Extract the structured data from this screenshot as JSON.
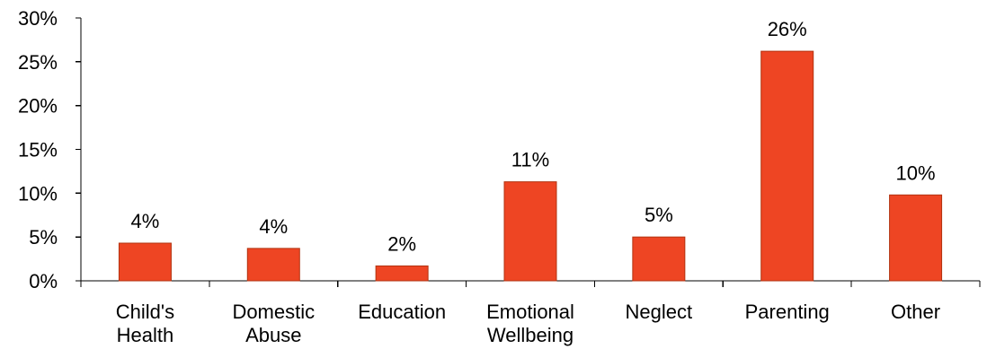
{
  "chart_data": {
    "type": "bar",
    "categories": [
      [
        "Child's",
        "Health"
      ],
      [
        "Domestic",
        "Abuse"
      ],
      [
        "Education"
      ],
      [
        "Emotional",
        "Wellbeing"
      ],
      [
        "Neglect"
      ],
      [
        "Parenting"
      ],
      [
        "Other"
      ]
    ],
    "values": [
      4.3,
      3.7,
      1.7,
      11.3,
      5.0,
      26.2,
      9.8
    ],
    "data_labels": [
      "4%",
      "4%",
      "2%",
      "11%",
      "5%",
      "26%",
      "10%"
    ],
    "ylim": [
      0,
      30
    ],
    "y_ticks": [
      0,
      5,
      10,
      15,
      20,
      25,
      30
    ],
    "y_tick_labels": [
      "0%",
      "5%",
      "10%",
      "15%",
      "20%",
      "25%",
      "30%"
    ],
    "title": "",
    "xlabel": "",
    "ylabel": "",
    "grid": false,
    "legend": "none",
    "bar_color": "#ee4523",
    "bar_edge_color": "#b23310"
  }
}
